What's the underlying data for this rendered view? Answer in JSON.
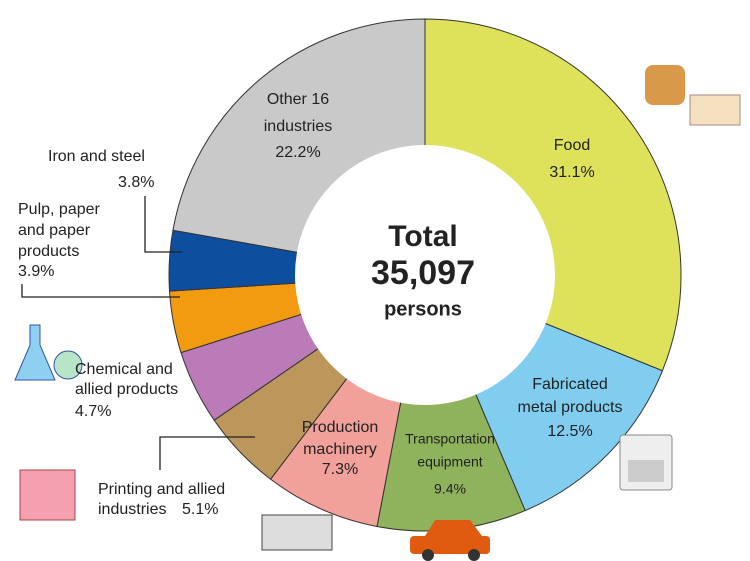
{
  "chart_data": {
    "type": "donut",
    "center": {
      "title": "Total",
      "total": "35,097",
      "unit": "persons"
    },
    "categories": [
      [
        "Food"
      ],
      [
        "Fabricated",
        "metal products"
      ],
      [
        "Transportation",
        "equipment"
      ],
      [
        "Production",
        "machinery"
      ],
      [
        "Printing and allied",
        "industries"
      ],
      [
        "Chemical and",
        "allied products"
      ],
      [
        "Pulp, paper",
        "and paper",
        "products"
      ],
      [
        "Iron and steel"
      ],
      [
        "Other 16",
        "industries"
      ]
    ],
    "values": [
      31.1,
      12.5,
      9.4,
      7.3,
      5.1,
      4.7,
      3.9,
      3.8,
      22.2
    ],
    "value_labels": [
      "31.1%",
      "12.5%",
      "9.4%",
      "7.3%",
      "5.1%",
      "4.7%",
      "3.9%",
      "3.8%",
      "22.2%"
    ],
    "colors": [
      "#dde25a",
      "#80cdf0",
      "#8fb25c",
      "#f1a09a",
      "#bc965a",
      "#ba7bb8",
      "#f29a10",
      "#0d4e9f",
      "#c9c9c9"
    ]
  }
}
